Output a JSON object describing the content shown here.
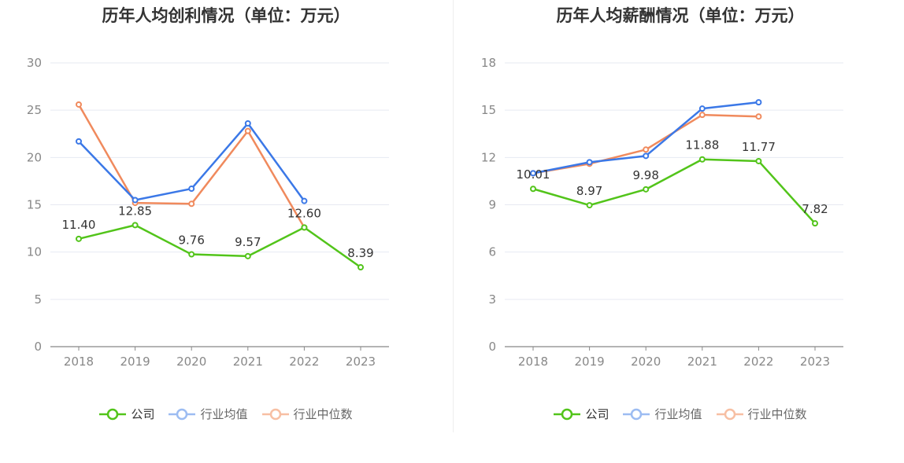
{
  "colors": {
    "company": "#52c41a",
    "industry_avg": "#3b78e7",
    "industry_median": "#f08a5d"
  },
  "legend": {
    "company": "公司",
    "industry_avg": "行业均值",
    "industry_median": "行业中位数"
  },
  "chart_data": [
    {
      "type": "line",
      "title": "历年人均创利情况（单位：万元）",
      "categories": [
        "2018",
        "2019",
        "2020",
        "2021",
        "2022",
        "2023"
      ],
      "ylim": [
        0,
        30
      ],
      "yticks": [
        0,
        5,
        10,
        15,
        20,
        25,
        30
      ],
      "grid": true,
      "legend_position": "bottom",
      "series": [
        {
          "name": "公司",
          "key": "company",
          "values": [
            11.4,
            12.85,
            9.76,
            9.57,
            12.6,
            8.39
          ],
          "labels": [
            "11.40",
            "12.85",
            "9.76",
            "9.57",
            "12.60",
            "8.39"
          ]
        },
        {
          "name": "行业均值",
          "key": "industry_avg",
          "values": [
            21.7,
            15.5,
            16.7,
            23.6,
            15.4,
            null
          ]
        },
        {
          "name": "行业中位数",
          "key": "industry_median",
          "values": [
            25.6,
            15.2,
            15.1,
            22.8,
            12.6,
            null
          ]
        }
      ]
    },
    {
      "type": "line",
      "title": "历年人均薪酬情况（单位：万元）",
      "categories": [
        "2018",
        "2019",
        "2020",
        "2021",
        "2022",
        "2023"
      ],
      "ylim": [
        0,
        18
      ],
      "yticks": [
        0,
        3,
        6,
        9,
        12,
        15,
        18
      ],
      "grid": true,
      "legend_position": "bottom",
      "series": [
        {
          "name": "公司",
          "key": "company",
          "values": [
            10.01,
            8.97,
            9.98,
            11.88,
            11.77,
            7.82
          ],
          "labels": [
            "10.01",
            "8.97",
            "9.98",
            "11.88",
            "11.77",
            "7.82"
          ]
        },
        {
          "name": "行业均值",
          "key": "industry_avg",
          "values": [
            11.0,
            11.7,
            12.1,
            15.1,
            15.5,
            null
          ]
        },
        {
          "name": "行业中位数",
          "key": "industry_median",
          "values": [
            11.0,
            11.6,
            12.5,
            14.7,
            14.6,
            null
          ]
        }
      ]
    }
  ]
}
